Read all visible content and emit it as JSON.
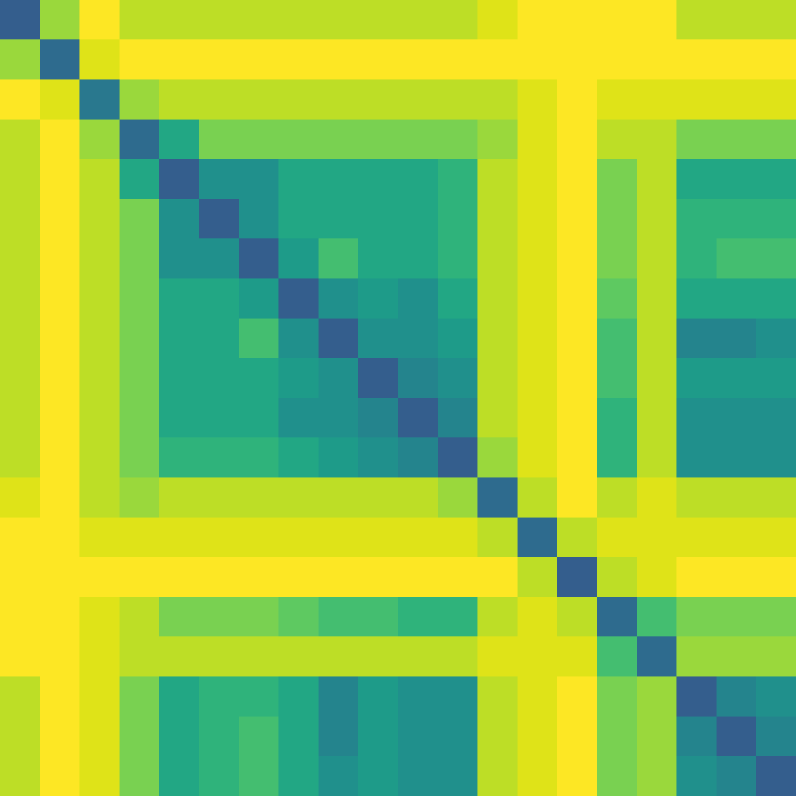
{
  "chart_data": {
    "type": "heatmap",
    "color": "viridis",
    "tick_labels": false,
    "color_range": [
      0,
      1
    ],
    "cells": [
      [
        0.3,
        0.85,
        1,
        0.9,
        0.9,
        0.9,
        0.9,
        0.9,
        0.9,
        0.9,
        0.9,
        0.9,
        0.95,
        1,
        1,
        1,
        1,
        0.9,
        0.9,
        0.9
      ],
      [
        0.85,
        0.35,
        0.95,
        1,
        1,
        1,
        1,
        1,
        1,
        1,
        1,
        1,
        1,
        1,
        1,
        1,
        1,
        1,
        1,
        1
      ],
      [
        1,
        0.95,
        0.4,
        0.85,
        0.9,
        0.9,
        0.9,
        0.9,
        0.9,
        0.9,
        0.9,
        0.9,
        0.9,
        0.95,
        1,
        0.95,
        0.95,
        0.95,
        0.95,
        0.95
      ],
      [
        0.9,
        1,
        0.85,
        0.35,
        0.6,
        0.8,
        0.8,
        0.8,
        0.8,
        0.8,
        0.8,
        0.8,
        0.85,
        0.95,
        1,
        0.9,
        0.9,
        0.8,
        0.8,
        0.8
      ],
      [
        0.9,
        1,
        0.9,
        0.6,
        0.3,
        0.5,
        0.5,
        0.6,
        0.6,
        0.6,
        0.6,
        0.65,
        0.9,
        0.95,
        1,
        0.8,
        0.9,
        0.6,
        0.6,
        0.6
      ],
      [
        0.9,
        1,
        0.9,
        0.8,
        0.5,
        0.3,
        0.5,
        0.6,
        0.6,
        0.6,
        0.6,
        0.65,
        0.9,
        0.95,
        1,
        0.8,
        0.9,
        0.65,
        0.65,
        0.65
      ],
      [
        0.9,
        1,
        0.9,
        0.8,
        0.5,
        0.5,
        0.3,
        0.55,
        0.7,
        0.6,
        0.6,
        0.65,
        0.9,
        0.95,
        1,
        0.8,
        0.9,
        0.65,
        0.7,
        0.7
      ],
      [
        0.9,
        1,
        0.9,
        0.8,
        0.6,
        0.6,
        0.55,
        0.3,
        0.5,
        0.55,
        0.5,
        0.6,
        0.9,
        0.95,
        1,
        0.75,
        0.9,
        0.6,
        0.6,
        0.6
      ],
      [
        0.9,
        1,
        0.9,
        0.8,
        0.6,
        0.6,
        0.7,
        0.5,
        0.3,
        0.5,
        0.5,
        0.55,
        0.9,
        0.95,
        1,
        0.7,
        0.9,
        0.45,
        0.45,
        0.5
      ],
      [
        0.9,
        1,
        0.9,
        0.8,
        0.6,
        0.6,
        0.6,
        0.55,
        0.5,
        0.3,
        0.45,
        0.5,
        0.9,
        0.95,
        1,
        0.7,
        0.9,
        0.55,
        0.55,
        0.55
      ],
      [
        0.9,
        1,
        0.9,
        0.8,
        0.6,
        0.6,
        0.6,
        0.5,
        0.5,
        0.45,
        0.3,
        0.45,
        0.9,
        0.95,
        1,
        0.65,
        0.9,
        0.5,
        0.5,
        0.5
      ],
      [
        0.9,
        1,
        0.9,
        0.8,
        0.65,
        0.65,
        0.65,
        0.6,
        0.55,
        0.5,
        0.45,
        0.3,
        0.85,
        0.95,
        1,
        0.65,
        0.9,
        0.5,
        0.5,
        0.5
      ],
      [
        0.95,
        1,
        0.9,
        0.85,
        0.9,
        0.9,
        0.9,
        0.9,
        0.9,
        0.9,
        0.9,
        0.85,
        0.35,
        0.9,
        1,
        0.9,
        0.95,
        0.9,
        0.9,
        0.9
      ],
      [
        1,
        1,
        0.95,
        0.95,
        0.95,
        0.95,
        0.95,
        0.95,
        0.95,
        0.95,
        0.95,
        0.95,
        0.9,
        0.35,
        0.9,
        0.95,
        0.95,
        0.95,
        0.95,
        0.95
      ],
      [
        1,
        1,
        1,
        1,
        1,
        1,
        1,
        1,
        1,
        1,
        1,
        1,
        1,
        0.9,
        0.3,
        0.9,
        0.95,
        1,
        1,
        1
      ],
      [
        1,
        1,
        0.95,
        0.9,
        0.8,
        0.8,
        0.8,
        0.75,
        0.7,
        0.7,
        0.65,
        0.65,
        0.9,
        0.95,
        0.9,
        0.35,
        0.7,
        0.8,
        0.8,
        0.8
      ],
      [
        1,
        1,
        0.95,
        0.9,
        0.9,
        0.9,
        0.9,
        0.9,
        0.9,
        0.9,
        0.9,
        0.9,
        0.95,
        0.95,
        0.95,
        0.7,
        0.35,
        0.85,
        0.85,
        0.85
      ],
      [
        0.9,
        1,
        0.95,
        0.8,
        0.6,
        0.65,
        0.65,
        0.6,
        0.45,
        0.55,
        0.5,
        0.5,
        0.9,
        0.95,
        1,
        0.8,
        0.85,
        0.3,
        0.45,
        0.5
      ],
      [
        0.9,
        1,
        0.95,
        0.8,
        0.6,
        0.65,
        0.7,
        0.6,
        0.45,
        0.55,
        0.5,
        0.5,
        0.9,
        0.95,
        1,
        0.8,
        0.85,
        0.45,
        0.3,
        0.45
      ],
      [
        0.9,
        1,
        0.95,
        0.8,
        0.6,
        0.65,
        0.7,
        0.6,
        0.5,
        0.55,
        0.5,
        0.5,
        0.9,
        0.95,
        1,
        0.8,
        0.85,
        0.5,
        0.45,
        0.3
      ]
    ]
  }
}
